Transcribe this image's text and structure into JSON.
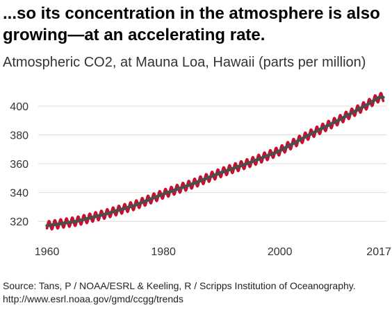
{
  "title": "...so its concentration in the atmosphere is also growing—at an accelerating rate.",
  "subtitle": "Atmospheric CO2, at Mauna Loa, Hawaii (parts per million)",
  "source": "Source: Tans, P / NOAA/ESRL & Keeling, R / Scripps Institution of Oceanography. http://www.esrl.noaa.gov/gmd/ccgg/trends",
  "colors": {
    "monthly": "#c8102e",
    "trend": "#4d4d4d",
    "grid": "#dddddd",
    "text": "#333333"
  },
  "chart_data": {
    "type": "line",
    "title": "Atmospheric CO2, at Mauna Loa, Hawaii (parts per million)",
    "xlabel": "",
    "ylabel": "",
    "xlim": [
      1958.5,
      2018.3
    ],
    "ylim": [
      310,
      412
    ],
    "grid": true,
    "legend": "none",
    "xticks": [
      1960,
      1980,
      2000,
      2017
    ],
    "yticks": [
      320,
      340,
      360,
      380,
      400
    ],
    "series": [
      {
        "role": "monthly",
        "seasonal_amplitude": 3,
        "x": [
          1960,
          1965,
          1970,
          1975,
          1980,
          1985,
          1990,
          1995,
          2000,
          2005,
          2010,
          2015,
          2017
        ],
        "values": [
          317,
          320,
          325,
          331,
          339,
          346,
          354,
          361,
          369,
          380,
          390,
          401,
          406
        ]
      },
      {
        "role": "trend",
        "x": [
          1960,
          1965,
          1970,
          1975,
          1980,
          1985,
          1990,
          1995,
          2000,
          2005,
          2010,
          2015,
          2017
        ],
        "values": [
          317,
          320,
          325,
          331,
          339,
          346,
          354,
          361,
          369,
          380,
          390,
          401,
          406
        ]
      }
    ]
  }
}
